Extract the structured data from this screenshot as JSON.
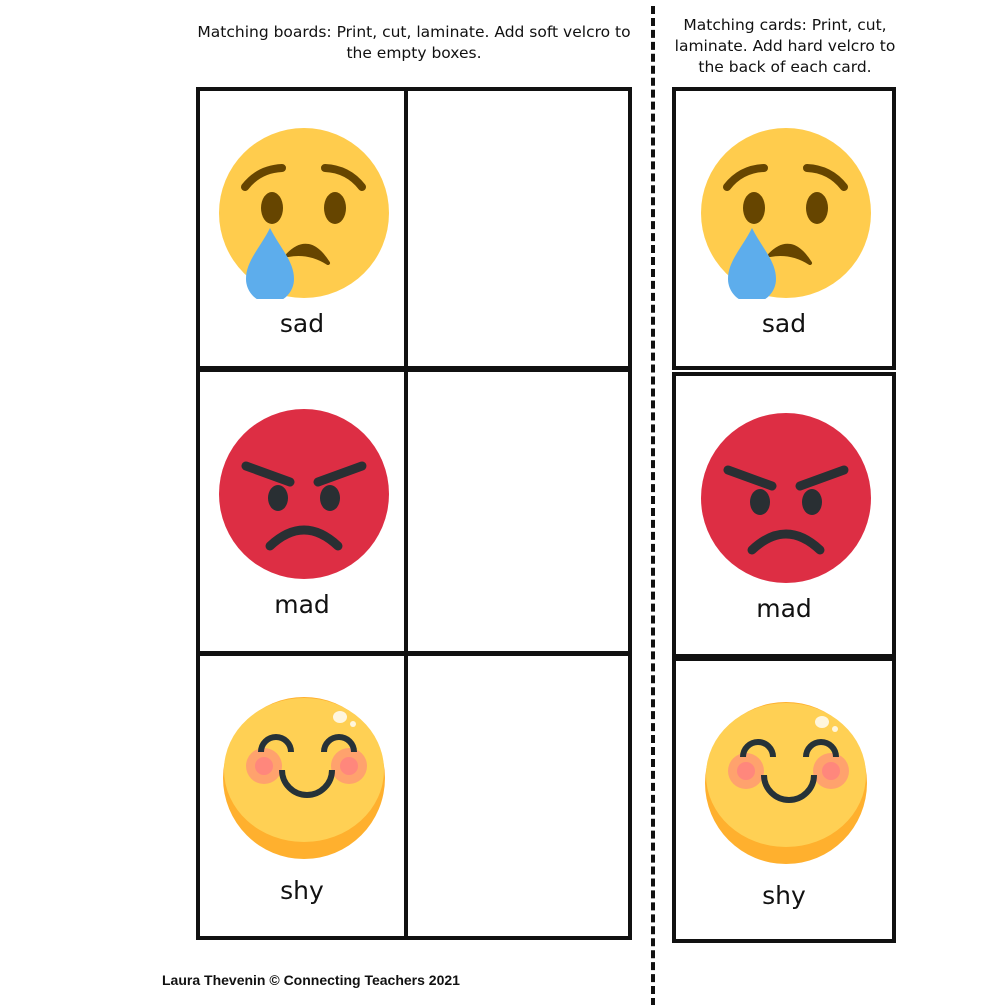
{
  "instructions": {
    "boards": "Matching boards: Print, cut, laminate. Add soft velcro to the empty boxes.",
    "cards": "Matching cards: Print, cut, laminate. Add hard velcro to the back of each card."
  },
  "emotions": [
    {
      "label": "sad",
      "icon": "crying-face-icon",
      "face_color": "#ffcc4d",
      "feature_color": "#664500",
      "tear_color": "#5dadec"
    },
    {
      "label": "mad",
      "icon": "angry-face-icon",
      "face_color": "#dd2e44",
      "feature_color": "#292f33"
    },
    {
      "label": "shy",
      "icon": "blushing-face-icon",
      "face_color": "#ffd054",
      "feature_color": "#263238",
      "blush_color": "#ff6b8b"
    }
  ],
  "footer": "Laura Thevenin © Connecting Teachers 2021"
}
